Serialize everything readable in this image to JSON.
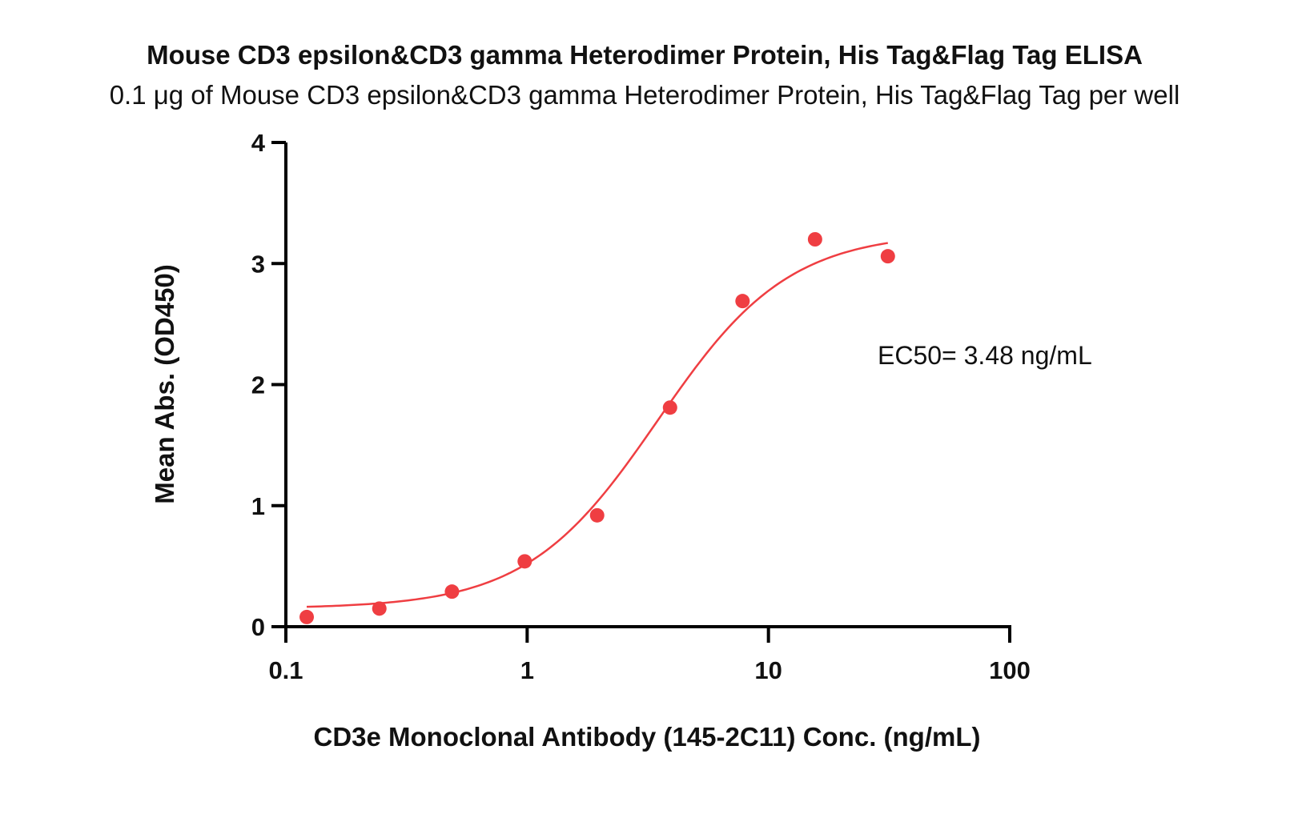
{
  "chart_data": {
    "type": "scatter",
    "title": "Mouse CD3 epsilon&CD3 gamma Heterodimer Protein, His Tag&Flag Tag ELISA",
    "subtitle": "0.1 μg of Mouse CD3 epsilon&CD3 gamma Heterodimer Protein, His Tag&Flag Tag per well",
    "xlabel": "CD3e Monoclonal Antibody (145-2C11) Conc. (ng/mL)",
    "ylabel": "Mean Abs. (OD450)",
    "x_scale": "log",
    "xlim": [
      0.1,
      100
    ],
    "ylim": [
      0,
      4
    ],
    "x_ticks": [
      0.1,
      1,
      10,
      100
    ],
    "x_tick_labels": [
      "0.1",
      "1",
      "10",
      "100"
    ],
    "y_ticks": [
      0,
      1,
      2,
      3,
      4
    ],
    "y_tick_labels": [
      "0",
      "1",
      "2",
      "3",
      "4"
    ],
    "grid": false,
    "annotation": "EC50= 3.48 ng/mL",
    "color": "#ef3e42",
    "series": [
      {
        "x": [
          0.122,
          0.244,
          0.488,
          0.977,
          1.95,
          3.91,
          7.81,
          15.6,
          31.25
        ],
        "y": [
          0.08,
          0.15,
          0.29,
          0.54,
          0.92,
          1.81,
          2.69,
          3.2,
          3.06
        ]
      }
    ],
    "fit_curve": {
      "model": "4PL",
      "bottom": 0.15,
      "top": 3.26,
      "ec50": 3.48,
      "hill": 1.6,
      "x_range": [
        0.122,
        31.25
      ]
    }
  }
}
